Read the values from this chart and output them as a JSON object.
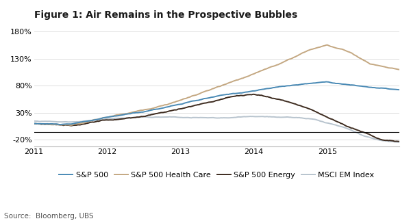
{
  "title": "Figure 1: Air Remains in the Prospective Bubbles",
  "source": "Source:  Bloomberg, UBS",
  "yticks": [
    -20,
    30,
    80,
    130,
    180
  ],
  "ylim": [
    -32,
    195
  ],
  "xlabel": "",
  "ylabel": "",
  "legend": [
    "S&P 500",
    "S&P 500 Health Care",
    "S&P 500 Energy",
    "MSCI EM Index"
  ],
  "colors": {
    "sp500": "#4a8ab5",
    "healthcare": "#c4a882",
    "energy": "#3d2b1f",
    "msci": "#b8c4ce"
  },
  "line_widths": {
    "sp500": 1.4,
    "healthcare": 1.4,
    "energy": 1.4,
    "msci": 1.4
  },
  "background_color": "#ffffff",
  "grid_color": "#d8d8d8",
  "title_fontsize": 10,
  "legend_fontsize": 8,
  "tick_fontsize": 8,
  "source_fontsize": 7.5,
  "x_tick_labels": [
    "2011",
    "2012",
    "2013",
    "2014",
    "2015"
  ],
  "x_tick_positions": [
    0,
    60,
    120,
    180,
    240
  ],
  "n_points": 300
}
